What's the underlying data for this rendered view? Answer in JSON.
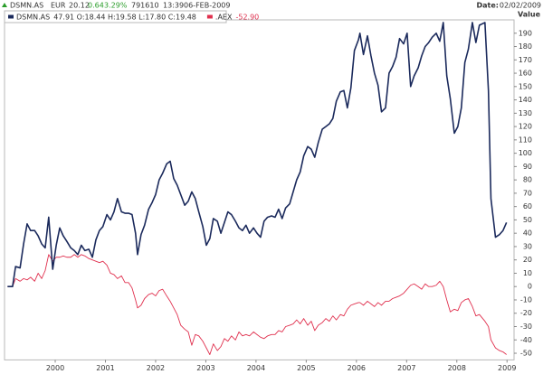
{
  "quote": {
    "symbol": "DSMN.AS",
    "currency": "EUR",
    "price": 20.12,
    "change": 0.64,
    "change_pct": "3.29%",
    "volume": 791610,
    "time": "13:39",
    "date": "06-FEB-2009"
  },
  "date_label": "Date:",
  "date": "02/02/2009",
  "chart_data": {
    "type": "line",
    "y_label": "Value",
    "x": [
      1999.05,
      1999.15,
      1999.21,
      1999.3,
      1999.37,
      1999.44,
      1999.51,
      1999.59,
      1999.66,
      1999.73,
      1999.8,
      1999.87,
      1999.95,
      2000.02,
      2000.09,
      2000.16,
      2000.23,
      2000.31,
      2000.38,
      2000.45,
      2000.52,
      2000.59,
      2000.67,
      2000.74,
      2000.81,
      2000.88,
      2000.95,
      2001.03,
      2001.1,
      2001.17,
      2001.24,
      2001.32,
      2001.39,
      2001.46,
      2001.53,
      2001.6,
      2001.64,
      2001.71,
      2001.78,
      2001.86,
      2001.93,
      2002.0,
      2002.07,
      2002.14,
      2002.22,
      2002.29,
      2002.36,
      2002.43,
      2002.5,
      2002.58,
      2002.65,
      2002.72,
      2002.79,
      2002.86,
      2002.94,
      2003.01,
      2003.08,
      2003.15,
      2003.23,
      2003.3,
      2003.37,
      2003.44,
      2003.51,
      2003.59,
      2003.66,
      2003.73,
      2003.8,
      2003.87,
      2003.95,
      2004.02,
      2004.09,
      2004.16,
      2004.23,
      2004.31,
      2004.38,
      2004.45,
      2004.52,
      2004.59,
      2004.67,
      2004.74,
      2004.81,
      2004.88,
      2004.95,
      2005.03,
      2005.1,
      2005.17,
      2005.24,
      2005.32,
      2005.39,
      2005.46,
      2005.53,
      2005.6,
      2005.68,
      2005.75,
      2005.82,
      2005.89,
      2005.96,
      2006.04,
      2006.07,
      2006.14,
      2006.22,
      2006.29,
      2006.36,
      2006.43,
      2006.5,
      2006.58,
      2006.65,
      2006.72,
      2006.79,
      2006.86,
      2006.94,
      2007.01,
      2007.08,
      2007.15,
      2007.23,
      2007.3,
      2007.37,
      2007.44,
      2007.51,
      2007.59,
      2007.66,
      2007.73,
      2007.8,
      2007.87,
      2007.95,
      2008.02,
      2008.09,
      2008.16,
      2008.23,
      2008.31,
      2008.38,
      2008.45,
      2008.56,
      2008.63,
      2008.68,
      2008.77,
      2008.85,
      2008.92,
      2008.99
    ],
    "series": [
      {
        "name": "DSMN.AS",
        "legend_text": "47.91 O:18.44 H:19.58 L:17.80 C:19.48",
        "color": "#1b2a5c",
        "values": [
          0,
          0,
          15,
          14,
          32,
          47,
          42,
          42,
          38,
          32,
          29,
          52,
          13,
          31,
          44,
          38,
          34,
          29,
          27,
          24,
          31,
          27,
          28,
          22,
          35,
          42,
          45,
          54,
          50,
          56,
          66,
          56,
          55,
          55,
          54,
          40,
          24,
          39,
          46,
          58,
          63,
          69,
          80,
          85,
          92,
          94,
          81,
          76,
          69,
          61,
          64,
          71,
          66,
          56,
          45,
          31,
          36,
          51,
          49,
          40,
          48,
          56,
          54,
          49,
          44,
          42,
          46,
          40,
          44,
          40,
          37,
          49,
          52,
          53,
          52,
          58,
          51,
          59,
          62,
          71,
          80,
          86,
          98,
          105,
          103,
          97,
          108,
          118,
          120,
          122,
          126,
          139,
          146,
          147,
          134,
          149,
          177,
          185,
          190,
          174,
          188,
          173,
          160,
          151,
          131,
          134,
          160,
          165,
          172,
          186,
          182,
          190,
          150,
          158,
          164,
          173,
          180,
          183,
          187,
          190,
          184,
          198,
          158,
          141,
          115,
          120,
          134,
          168,
          178,
          198,
          183,
          196,
          198,
          147,
          66,
          37,
          39,
          42,
          48
        ]
      },
      {
        "name": ".AEX",
        "legend_text": "-52.90",
        "color": "#e0304e",
        "values": [
          0,
          0,
          6,
          4,
          6,
          5,
          7,
          4,
          10,
          6,
          12,
          24,
          19,
          22,
          22,
          23,
          22,
          22,
          24,
          22,
          24,
          23,
          21,
          20,
          19,
          18,
          19,
          16,
          10,
          9,
          6,
          8,
          3,
          3,
          -1,
          -10,
          -16,
          -14,
          -9,
          -6,
          -5,
          -7,
          -3,
          -2,
          -7,
          -11,
          -16,
          -21,
          -29,
          -32,
          -34,
          -44,
          -36,
          -37,
          -41,
          -46,
          -51,
          -43,
          -48,
          -45,
          -39,
          -41,
          -37,
          -40,
          -34,
          -37,
          -36,
          -37,
          -34,
          -36,
          -38,
          -39,
          -37,
          -36,
          -36,
          -33,
          -34,
          -30,
          -29,
          -28,
          -25,
          -28,
          -24,
          -29,
          -26,
          -33,
          -29,
          -27,
          -24,
          -26,
          -22,
          -25,
          -21,
          -22,
          -17,
          -14,
          -13,
          -12,
          -12,
          -14,
          -11,
          -13,
          -15,
          -12,
          -14,
          -11,
          -11,
          -9,
          -8,
          -7,
          -5,
          -2,
          1,
          2,
          0,
          -2,
          2,
          0,
          0,
          1,
          4,
          0,
          -10,
          -19,
          -17,
          -18,
          -12,
          -10,
          -9,
          -15,
          -22,
          -21,
          -26,
          -30,
          -40,
          -46,
          -48,
          -49,
          -51
        ]
      }
    ],
    "xlim": [
      1998.99,
      2009.14
    ],
    "xticks": [
      2000,
      2001,
      2002,
      2003,
      2004,
      2005,
      2006,
      2007,
      2008,
      2009
    ],
    "ylim": [
      -55,
      200
    ],
    "yticks": [
      190,
      180,
      170,
      160,
      150,
      140,
      130,
      120,
      110,
      100,
      90,
      80,
      70,
      60,
      50,
      40,
      30,
      20,
      10,
      0,
      -10,
      -20,
      -30,
      -40,
      -50
    ],
    "grid": false
  }
}
